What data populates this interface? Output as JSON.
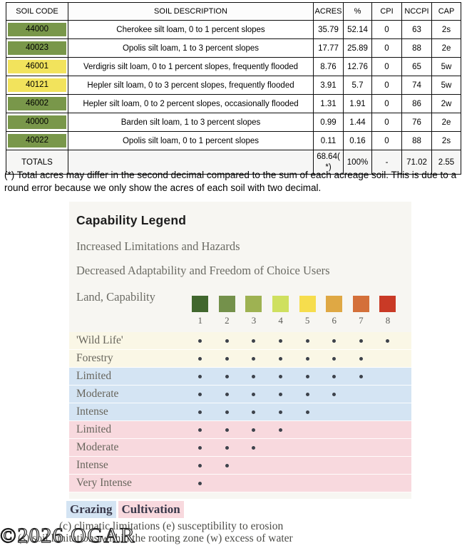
{
  "soil_table": {
    "columns": [
      "SOIL CODE",
      "SOIL DESCRIPTION",
      "ACRES",
      "%",
      "CPI",
      "NCCPI",
      "CAP"
    ],
    "row_colors": {
      "green": "#79974a",
      "yellow": "#f2e35c"
    },
    "rows": [
      {
        "code": "44000",
        "color": "green",
        "description": "Cherokee silt loam, 0 to 1 percent slopes",
        "acres": "35.79",
        "pct": "52.14",
        "cpi": "0",
        "nccpi": "63",
        "cap": "2s"
      },
      {
        "code": "40023",
        "color": "green",
        "description": "Opolis silt loam, 1 to 3 percent slopes",
        "acres": "17.77",
        "pct": "25.89",
        "cpi": "0",
        "nccpi": "88",
        "cap": "2e"
      },
      {
        "code": "46001",
        "color": "yellow",
        "description": "Verdigris silt loam, 0 to 1 percent slopes, frequently flooded",
        "acres": "8.76",
        "pct": "12.76",
        "cpi": "0",
        "nccpi": "65",
        "cap": "5w"
      },
      {
        "code": "40121",
        "color": "yellow",
        "description": "Hepler silt loam, 0 to 3 percent slopes, frequently flooded",
        "acres": "3.91",
        "pct": "5.7",
        "cpi": "0",
        "nccpi": "74",
        "cap": "5w"
      },
      {
        "code": "46002",
        "color": "green",
        "description": "Hepler silt loam, 0 to 2 percent slopes, occasionally flooded",
        "acres": "1.31",
        "pct": "1.91",
        "cpi": "0",
        "nccpi": "86",
        "cap": "2w"
      },
      {
        "code": "40000",
        "color": "green",
        "description": "Barden silt loam, 1 to 3 percent slopes",
        "acres": "0.99",
        "pct": "1.44",
        "cpi": "0",
        "nccpi": "76",
        "cap": "2e"
      },
      {
        "code": "40022",
        "color": "green",
        "description": "Opolis silt loam, 0 to 1 percent slopes",
        "acres": "0.11",
        "pct": "0.16",
        "cpi": "0",
        "nccpi": "88",
        "cap": "2s"
      }
    ],
    "totals": {
      "label": "TOTALS",
      "acres": "68.64( *)",
      "pct": "100%",
      "cpi": "-",
      "nccpi": "71.02",
      "cap": "2.55"
    }
  },
  "footnote": "(*) Total acres may differ in the second decimal compared to the sum of each acreage soil. This is due to a round error because we only show the acres of each soil with two decimal.",
  "legend": {
    "title": "Capability Legend",
    "line1": "Increased Limitations and Hazards",
    "line2": "Decreased Adaptability and Freedom of Choice Users",
    "scale_label": "Land, Capability",
    "scale": [
      {
        "value": "1",
        "color": "#41672e"
      },
      {
        "value": "2",
        "color": "#74914b"
      },
      {
        "value": "3",
        "color": "#9eb252"
      },
      {
        "value": "4",
        "color": "#cfe05f"
      },
      {
        "value": "5",
        "color": "#f6dd4d"
      },
      {
        "value": "6",
        "color": "#dfa844"
      },
      {
        "value": "7",
        "color": "#d4703a"
      },
      {
        "value": "8",
        "color": "#c93a26"
      }
    ],
    "group_colors": {
      "cream": "#faf7e6",
      "blue": "#d4e4f3",
      "pink": "#f8d9de"
    },
    "rows": [
      {
        "label": "'Wild Life'",
        "group": "cream",
        "dots": 8
      },
      {
        "label": "Forestry",
        "group": "cream",
        "dots": 7
      },
      {
        "label": "Limited",
        "group": "blue",
        "dots": 7
      },
      {
        "label": "Moderate",
        "group": "blue",
        "dots": 6
      },
      {
        "label": "Intense",
        "group": "blue",
        "dots": 5
      },
      {
        "label": "Limited",
        "group": "pink",
        "dots": 4
      },
      {
        "label": "Moderate",
        "group": "pink",
        "dots": 3
      },
      {
        "label": "Intense",
        "group": "pink",
        "dots": 2
      },
      {
        "label": "Very Intense",
        "group": "pink",
        "dots": 1
      }
    ],
    "tags": [
      {
        "label": "Grazing",
        "group": "blue"
      },
      {
        "label": "Cultivation",
        "group": "pink"
      }
    ],
    "notes": [
      "(c) climatic limitations (e) susceptibility to erosion",
      "(s) soil limitations within the rooting zone (w) excess of water"
    ]
  },
  "watermark": "©2026 OGAR"
}
